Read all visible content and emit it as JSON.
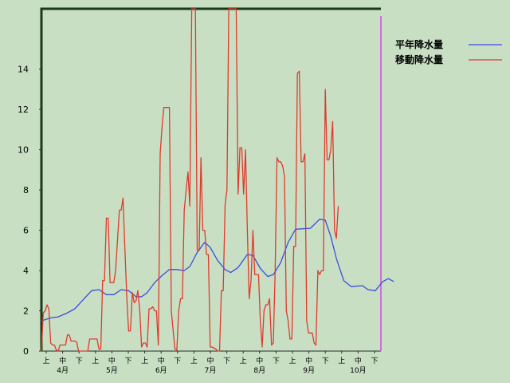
{
  "chart_data": {
    "type": "line",
    "ylim": [
      0,
      17
    ],
    "y_ticks": [
      "0",
      "2",
      "4",
      "6",
      "8",
      "10",
      "12",
      "14"
    ],
    "x_days": 183,
    "sub_ticks": [
      "上",
      "中",
      "下",
      "上",
      "中",
      "下",
      "上",
      "中",
      "下",
      "上",
      "中",
      "下",
      "上",
      "中",
      "下",
      "上",
      "中",
      "下",
      "上",
      "中",
      "下"
    ],
    "month_labels": [
      "4月",
      "5月",
      "6月",
      "7月",
      "8月",
      "9月",
      "10月"
    ],
    "legend": {
      "placement": "top-right"
    },
    "colors": {
      "background": "#c8dfc4",
      "axis": "#1a3a1a",
      "marker": "#d070d8"
    },
    "series": [
      {
        "name": "平年降水量",
        "color": "#3a4ee0",
        "points": [
          [
            0,
            1.5
          ],
          [
            5,
            1.65
          ],
          [
            9,
            1.7
          ],
          [
            14,
            1.9
          ],
          [
            18,
            2.1
          ],
          [
            22,
            2.5
          ],
          [
            27,
            3.0
          ],
          [
            31,
            3.05
          ],
          [
            35,
            2.8
          ],
          [
            39,
            2.8
          ],
          [
            43,
            3.05
          ],
          [
            47,
            3.0
          ],
          [
            51,
            2.7
          ],
          [
            54,
            2.7
          ],
          [
            57,
            2.9
          ],
          [
            61,
            3.4
          ],
          [
            65,
            3.75
          ],
          [
            69,
            4.05
          ],
          [
            73,
            4.05
          ],
          [
            77,
            4.0
          ],
          [
            80,
            4.2
          ],
          [
            84,
            4.9
          ],
          [
            88,
            5.4
          ],
          [
            91,
            5.15
          ],
          [
            95,
            4.5
          ],
          [
            99,
            4.05
          ],
          [
            102,
            3.9
          ],
          [
            106,
            4.15
          ],
          [
            111,
            4.8
          ],
          [
            114,
            4.75
          ],
          [
            118,
            4.1
          ],
          [
            122,
            3.7
          ],
          [
            125,
            3.8
          ],
          [
            129,
            4.4
          ],
          [
            133,
            5.4
          ],
          [
            137,
            6.05
          ],
          [
            145,
            6.1
          ],
          [
            150,
            6.55
          ],
          [
            153,
            6.5
          ],
          [
            156,
            5.7
          ],
          [
            159,
            4.6
          ],
          [
            163,
            3.5
          ],
          [
            167,
            3.2
          ],
          [
            173,
            3.25
          ],
          [
            176,
            3.05
          ],
          [
            180,
            3.0
          ],
          [
            184,
            3.45
          ],
          [
            187,
            3.6
          ],
          [
            190,
            3.45
          ]
        ]
      },
      {
        "name": "移動降水量",
        "color": "#e03a2c",
        "points": [
          [
            0,
            0
          ],
          [
            1,
            1.9
          ],
          [
            2,
            2.0
          ],
          [
            3,
            2.3
          ],
          [
            4,
            2.1
          ],
          [
            5,
            0.4
          ],
          [
            6,
            0.3
          ],
          [
            7,
            0.3
          ],
          [
            8,
            0.05
          ],
          [
            9,
            0
          ],
          [
            10,
            0.3
          ],
          [
            12,
            0.3
          ],
          [
            13,
            0.3
          ],
          [
            14,
            0.8
          ],
          [
            15,
            0.8
          ],
          [
            16,
            0.5
          ],
          [
            18,
            0.5
          ],
          [
            19,
            0.45
          ],
          [
            20,
            0
          ],
          [
            25,
            0
          ],
          [
            26,
            0.6
          ],
          [
            30,
            0.6
          ],
          [
            31,
            0.1
          ],
          [
            32,
            0.1
          ],
          [
            33,
            3.5
          ],
          [
            34,
            3.5
          ],
          [
            35,
            6.6
          ],
          [
            36,
            6.6
          ],
          [
            37,
            3.4
          ],
          [
            38,
            3.4
          ],
          [
            39,
            3.4
          ],
          [
            40,
            4.0
          ],
          [
            42,
            7.0
          ],
          [
            43,
            7.0
          ],
          [
            44,
            7.6
          ],
          [
            45,
            5.0
          ],
          [
            46,
            2.7
          ],
          [
            47,
            1.0
          ],
          [
            48,
            1.0
          ],
          [
            49,
            2.9
          ],
          [
            50,
            2.4
          ],
          [
            51,
            2.5
          ],
          [
            52,
            3.0
          ],
          [
            53,
            2.0
          ],
          [
            54,
            0.2
          ],
          [
            55,
            0.4
          ],
          [
            56,
            0.4
          ],
          [
            57,
            0.2
          ],
          [
            58,
            2.1
          ],
          [
            59,
            2.1
          ],
          [
            60,
            2.2
          ],
          [
            61,
            2.0
          ],
          [
            62,
            2.0
          ],
          [
            63,
            0.3
          ],
          [
            64,
            9.8
          ],
          [
            65,
            11.1
          ],
          [
            66,
            12.1
          ],
          [
            69,
            12.1
          ],
          [
            70,
            2.0
          ],
          [
            71,
            1.0
          ],
          [
            72,
            0.1
          ],
          [
            73,
            0.05
          ],
          [
            74,
            2.0
          ],
          [
            75,
            2.6
          ],
          [
            76,
            2.6
          ],
          [
            77,
            7.0
          ],
          [
            78,
            8.0
          ],
          [
            79,
            8.9
          ],
          [
            80,
            7.2
          ],
          [
            81,
            17.5
          ],
          [
            82,
            17.5
          ],
          [
            83,
            17.5
          ],
          [
            84,
            5.0
          ],
          [
            85,
            5.0
          ],
          [
            86,
            9.6
          ],
          [
            87,
            6.0
          ],
          [
            88,
            6.0
          ],
          [
            89,
            4.8
          ],
          [
            90,
            4.8
          ],
          [
            91,
            0.2
          ],
          [
            92,
            0.2
          ],
          [
            94,
            0.1
          ],
          [
            95,
            0
          ],
          [
            96,
            0
          ],
          [
            97,
            3.0
          ],
          [
            98,
            3.0
          ],
          [
            99,
            7.3
          ],
          [
            100,
            8.0
          ],
          [
            101,
            17.5
          ],
          [
            102,
            17.5
          ],
          [
            103,
            17.5
          ],
          [
            104,
            17.5
          ],
          [
            105,
            17.5
          ],
          [
            106,
            7.8
          ],
          [
            107,
            10.1
          ],
          [
            108,
            10.1
          ],
          [
            109,
            7.8
          ],
          [
            110,
            10.0
          ],
          [
            111,
            6.0
          ],
          [
            112,
            2.6
          ],
          [
            113,
            3.5
          ],
          [
            114,
            6.0
          ],
          [
            115,
            3.8
          ],
          [
            117,
            3.8
          ],
          [
            118,
            1.5
          ],
          [
            119,
            0.2
          ],
          [
            120,
            2.0
          ],
          [
            121,
            2.3
          ],
          [
            122,
            2.3
          ],
          [
            123,
            2.6
          ],
          [
            124,
            0.3
          ],
          [
            125,
            0.4
          ],
          [
            126,
            4.0
          ],
          [
            127,
            9.6
          ],
          [
            128,
            9.4
          ],
          [
            129,
            9.4
          ],
          [
            130,
            9.2
          ],
          [
            131,
            8.7
          ],
          [
            132,
            2.0
          ],
          [
            133,
            1.5
          ],
          [
            134,
            0.6
          ],
          [
            135,
            0.6
          ],
          [
            136,
            5.2
          ],
          [
            137,
            5.2
          ],
          [
            138,
            13.8
          ],
          [
            139,
            13.9
          ],
          [
            140,
            9.4
          ],
          [
            141,
            9.4
          ],
          [
            142,
            9.8
          ],
          [
            143,
            1.5
          ],
          [
            144,
            0.9
          ],
          [
            145,
            0.9
          ],
          [
            146,
            0.9
          ],
          [
            147,
            0.4
          ],
          [
            148,
            0.3
          ],
          [
            149,
            4.0
          ],
          [
            150,
            3.8
          ],
          [
            151,
            4.0
          ],
          [
            152,
            4.0
          ],
          [
            153,
            13.0
          ],
          [
            154,
            9.5
          ],
          [
            155,
            9.5
          ],
          [
            156,
            10.0
          ],
          [
            157,
            11.4
          ],
          [
            158,
            6.0
          ],
          [
            159,
            5.6
          ],
          [
            160,
            7.2
          ]
        ]
      }
    ]
  }
}
